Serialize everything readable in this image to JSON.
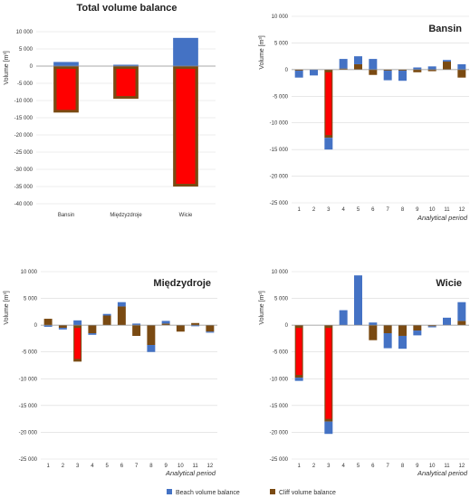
{
  "colors": {
    "beach": "#4472c4",
    "cliff": "#7a4a12",
    "overlay": "#ff0000",
    "grid": "#d9d9d9",
    "axis": "#8c8c8c"
  },
  "legend": {
    "beach_label": "Beach volume balance",
    "cliff_label": "Cliff volume balance"
  },
  "chart_data": [
    {
      "type": "bar",
      "title": "Total volume balance",
      "ylabel": "Volume [m³]",
      "xlabel": "",
      "ylim": [
        -40000,
        10000
      ],
      "yticks": [
        10000,
        5000,
        0,
        -5000,
        -10000,
        -15000,
        -20000,
        -25000,
        -30000,
        -35000,
        -40000
      ],
      "ytick_labels": [
        "10 000",
        "5 000",
        "0",
        "-5 000",
        "-10 000",
        "-15 000",
        "-20 000",
        "-25 000",
        "-30 000",
        "-35 000",
        "-40 000"
      ],
      "categories": [
        "Bansin",
        "Międzyzdroje",
        "Wicie"
      ],
      "series": [
        {
          "name": "Beach volume balance",
          "values": [
            1200,
            400,
            8200
          ]
        },
        {
          "name": "Cliff volume balance",
          "values": [
            -13500,
            -9500,
            -35000
          ]
        }
      ]
    },
    {
      "type": "bar",
      "title": "Bansin",
      "ylabel": "Volume [m³]",
      "xlabel": "Analytical period",
      "ylim": [
        -25000,
        10000
      ],
      "yticks": [
        10000,
        5000,
        0,
        -5000,
        -10000,
        -15000,
        -20000,
        -25000
      ],
      "ytick_labels": [
        "10 000",
        "5 000",
        "0",
        "-5 000",
        "-10 000",
        "-15 000",
        "-20 000",
        "-25 000"
      ],
      "categories": [
        "1",
        "2",
        "3",
        "4",
        "5",
        "6",
        "7",
        "8",
        "9",
        "10",
        "11",
        "12"
      ],
      "series": [
        {
          "name": "Beach volume balance",
          "values": [
            -1300,
            -1100,
            -2200,
            1800,
            1500,
            2000,
            -1800,
            -1900,
            400,
            600,
            300,
            1000
          ]
        },
        {
          "name": "Cliff volume balance",
          "values": [
            -200,
            0,
            -12800,
            200,
            1000,
            -1000,
            -200,
            -200,
            -500,
            -300,
            1500,
            -1500
          ]
        }
      ]
    },
    {
      "type": "bar",
      "title": "Międzydroje",
      "ylabel": "Volume [m³]",
      "xlabel": "Analytical period",
      "ylim": [
        -25000,
        10000
      ],
      "yticks": [
        10000,
        5000,
        0,
        -5000,
        -10000,
        -15000,
        -20000,
        -25000
      ],
      "ytick_labels": [
        "10 000",
        "5 000",
        "0",
        "-5 000",
        "-10 000",
        "-15 000",
        "-20 000",
        "-25 000"
      ],
      "categories": [
        "1",
        "2",
        "3",
        "4",
        "5",
        "6",
        "7",
        "8",
        "9",
        "10",
        "11",
        "12"
      ],
      "series": [
        {
          "name": "Beach volume balance",
          "values": [
            -300,
            -300,
            900,
            -300,
            300,
            800,
            300,
            -1300,
            500,
            0,
            -200,
            -200
          ]
        },
        {
          "name": "Cliff volume balance",
          "values": [
            1200,
            -500,
            -6800,
            -1500,
            1800,
            3500,
            -2000,
            -3700,
            300,
            -1200,
            400,
            -1200
          ]
        }
      ]
    },
    {
      "type": "bar",
      "title": "Wicie",
      "ylabel": "Volume [m³]",
      "xlabel": "Analytical period",
      "ylim": [
        -25000,
        10000
      ],
      "yticks": [
        10000,
        5000,
        0,
        -5000,
        -10000,
        -15000,
        -20000,
        -25000
      ],
      "ytick_labels": [
        "10 000",
        "5 000",
        "0",
        "-5 000",
        "-10 000",
        "-15 000",
        "-20 000",
        "-25 000"
      ],
      "categories": [
        "1",
        "2",
        "3",
        "4",
        "5",
        "6",
        "7",
        "8",
        "9",
        "10",
        "11",
        "12"
      ],
      "series": [
        {
          "name": "Beach volume balance",
          "values": [
            -600,
            0,
            -2300,
            2800,
            9300,
            500,
            -2800,
            -2400,
            -900,
            -200,
            1400,
            3500
          ]
        },
        {
          "name": "Cliff volume balance",
          "values": [
            -9800,
            0,
            -18000,
            0,
            0,
            -2800,
            -1500,
            -2000,
            -1000,
            -200,
            0,
            800
          ]
        }
      ]
    }
  ]
}
